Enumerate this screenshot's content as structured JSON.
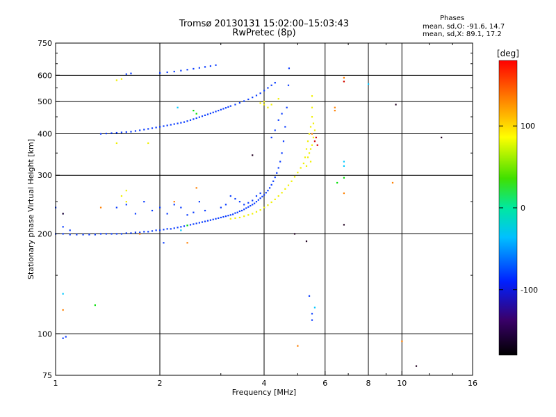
{
  "title": "Tromsø 20130131 15:02:00–15:03:43",
  "subtitle": "RwPretec (8p)",
  "stats": {
    "header": "Phases",
    "line_o": "mean, sd,O: -91.6, 14.7",
    "line_x": "mean, sd,X:  89.1, 17.2"
  },
  "colorbar": {
    "label": "[deg]",
    "range": [
      -180,
      180
    ],
    "ticks": [
      100,
      0,
      -100
    ],
    "tick_labels": [
      "100",
      "0",
      "-100"
    ]
  },
  "chart_data": {
    "type": "scatter",
    "xlabel": "Frequency [MHz]",
    "ylabel": "Stationary phase Virtual Height [km]",
    "xscale": "log",
    "yscale": "log",
    "xlim": [
      1,
      16
    ],
    "ylim": [
      75,
      750
    ],
    "xticks": [
      1,
      2,
      4,
      6,
      8,
      10,
      16
    ],
    "xtick_labels": [
      "1",
      "2",
      "4",
      "6",
      "8",
      "10",
      "16"
    ],
    "yticks": [
      75,
      100,
      200,
      300,
      400,
      500,
      600,
      750
    ],
    "ytick_labels": [
      "75",
      "100",
      "200",
      "300",
      "400",
      "500",
      "600",
      "750"
    ],
    "color_encoding": "phase [deg]",
    "series": [
      {
        "color": "#0a3cff",
        "points": [
          [
            1.0,
            200
          ],
          [
            1.05,
            200
          ],
          [
            1.1,
            199
          ],
          [
            1.15,
            199
          ],
          [
            1.2,
            199
          ],
          [
            1.25,
            199
          ],
          [
            1.3,
            199
          ],
          [
            1.35,
            200
          ],
          [
            1.4,
            200
          ],
          [
            1.45,
            200
          ],
          [
            1.5,
            200
          ],
          [
            1.55,
            200
          ],
          [
            1.6,
            201
          ],
          [
            1.65,
            201
          ],
          [
            1.7,
            202
          ],
          [
            1.75,
            202
          ],
          [
            1.8,
            203
          ],
          [
            1.85,
            203
          ],
          [
            1.9,
            204
          ],
          [
            1.95,
            205
          ],
          [
            2.0,
            205
          ],
          [
            2.05,
            206
          ],
          [
            2.1,
            207
          ],
          [
            2.15,
            207
          ],
          [
            2.2,
            208
          ],
          [
            2.25,
            209
          ],
          [
            2.3,
            210
          ],
          [
            2.35,
            211
          ],
          [
            2.4,
            212
          ],
          [
            2.45,
            213
          ],
          [
            2.5,
            214
          ],
          [
            2.55,
            215
          ],
          [
            2.6,
            216
          ],
          [
            2.65,
            217
          ],
          [
            2.7,
            218
          ],
          [
            2.75,
            219
          ],
          [
            2.8,
            220
          ],
          [
            2.85,
            221
          ],
          [
            2.9,
            222
          ],
          [
            2.95,
            223
          ],
          [
            3.0,
            224
          ],
          [
            3.05,
            225
          ],
          [
            3.1,
            226
          ],
          [
            3.15,
            227
          ],
          [
            3.2,
            228
          ],
          [
            3.25,
            229
          ],
          [
            3.3,
            231
          ],
          [
            3.35,
            232
          ],
          [
            3.4,
            234
          ],
          [
            3.45,
            235
          ],
          [
            3.5,
            237
          ],
          [
            3.55,
            239
          ],
          [
            3.6,
            241
          ],
          [
            3.65,
            243
          ],
          [
            3.7,
            245
          ],
          [
            3.75,
            247
          ],
          [
            3.8,
            250
          ],
          [
            3.85,
            253
          ],
          [
            3.9,
            256
          ],
          [
            3.95,
            259
          ],
          [
            4.0,
            262
          ],
          [
            4.05,
            266
          ],
          [
            4.1,
            270
          ],
          [
            4.15,
            275
          ],
          [
            4.2,
            281
          ],
          [
            4.25,
            288
          ],
          [
            4.3,
            296
          ],
          [
            4.35,
            305
          ],
          [
            4.4,
            316
          ],
          [
            4.45,
            330
          ],
          [
            4.5,
            350
          ],
          [
            4.55,
            380
          ],
          [
            4.6,
            420
          ],
          [
            4.65,
            480
          ],
          [
            4.7,
            560
          ],
          [
            4.72,
            630
          ],
          [
            1.35,
            400
          ],
          [
            1.4,
            401
          ],
          [
            1.45,
            402
          ],
          [
            1.5,
            403
          ],
          [
            1.55,
            404
          ],
          [
            1.6,
            405
          ],
          [
            1.65,
            406
          ],
          [
            1.7,
            408
          ],
          [
            1.75,
            410
          ],
          [
            1.8,
            412
          ],
          [
            1.85,
            414
          ],
          [
            1.9,
            416
          ],
          [
            1.95,
            418
          ],
          [
            2.0,
            420
          ],
          [
            2.05,
            422
          ],
          [
            2.1,
            424
          ],
          [
            2.15,
            426
          ],
          [
            2.2,
            428
          ],
          [
            2.25,
            430
          ],
          [
            2.3,
            432
          ],
          [
            2.35,
            434
          ],
          [
            2.4,
            437
          ],
          [
            2.45,
            440
          ],
          [
            2.5,
            443
          ],
          [
            2.55,
            446
          ],
          [
            2.6,
            449
          ],
          [
            2.65,
            452
          ],
          [
            2.7,
            455
          ],
          [
            2.75,
            458
          ],
          [
            2.8,
            461
          ],
          [
            2.85,
            464
          ],
          [
            2.9,
            467
          ],
          [
            2.95,
            470
          ],
          [
            3.0,
            473
          ],
          [
            3.05,
            476
          ],
          [
            3.1,
            479
          ],
          [
            3.15,
            482
          ],
          [
            3.2,
            485
          ],
          [
            3.3,
            490
          ],
          [
            3.4,
            496
          ],
          [
            3.5,
            502
          ],
          [
            3.6,
            508
          ],
          [
            3.7,
            515
          ],
          [
            3.8,
            522
          ],
          [
            3.9,
            530
          ],
          [
            4.0,
            540
          ],
          [
            4.1,
            550
          ],
          [
            4.2,
            560
          ],
          [
            4.3,
            570
          ],
          [
            1.6,
            605
          ],
          [
            1.65,
            608
          ],
          [
            2.0,
            610
          ],
          [
            2.1,
            613
          ],
          [
            2.2,
            616
          ],
          [
            2.3,
            620
          ],
          [
            2.4,
            624
          ],
          [
            2.5,
            628
          ],
          [
            2.6,
            632
          ],
          [
            2.7,
            636
          ],
          [
            2.8,
            640
          ],
          [
            2.9,
            644
          ],
          [
            1.5,
            240
          ],
          [
            1.6,
            245
          ],
          [
            1.7,
            230
          ],
          [
            1.8,
            250
          ],
          [
            1.9,
            235
          ],
          [
            2.0,
            240
          ],
          [
            2.1,
            230
          ],
          [
            2.2,
            245
          ],
          [
            2.3,
            240
          ],
          [
            2.4,
            228
          ],
          [
            2.5,
            232
          ],
          [
            2.6,
            250
          ],
          [
            2.7,
            235
          ],
          [
            3.0,
            240
          ],
          [
            3.1,
            245
          ],
          [
            3.2,
            260
          ],
          [
            3.3,
            255
          ],
          [
            3.4,
            250
          ],
          [
            3.5,
            245
          ],
          [
            3.6,
            248
          ],
          [
            3.7,
            252
          ],
          [
            3.8,
            260
          ],
          [
            3.9,
            265
          ],
          [
            4.0,
            240
          ],
          [
            4.2,
            390
          ],
          [
            4.3,
            410
          ],
          [
            4.4,
            440
          ],
          [
            4.5,
            460
          ],
          [
            1.0,
            240
          ],
          [
            1.05,
            230
          ],
          [
            1.05,
            210
          ],
          [
            1.1,
            205
          ],
          [
            1.05,
            97
          ],
          [
            1.07,
            98
          ],
          [
            2.05,
            188
          ],
          [
            5.5,
            110
          ],
          [
            5.5,
            115
          ],
          [
            5.4,
            130
          ]
        ]
      },
      {
        "color": "#f0f000",
        "points": [
          [
            3.2,
            222
          ],
          [
            3.3,
            223
          ],
          [
            3.4,
            224
          ],
          [
            3.5,
            226
          ],
          [
            3.6,
            228
          ],
          [
            3.7,
            230
          ],
          [
            3.8,
            233
          ],
          [
            3.9,
            236
          ],
          [
            4.0,
            240
          ],
          [
            4.1,
            244
          ],
          [
            4.2,
            249
          ],
          [
            4.3,
            254
          ],
          [
            4.4,
            260
          ],
          [
            4.5,
            266
          ],
          [
            4.6,
            273
          ],
          [
            4.7,
            280
          ],
          [
            4.8,
            288
          ],
          [
            4.9,
            297
          ],
          [
            5.0,
            306
          ],
          [
            5.1,
            316
          ],
          [
            5.2,
            326
          ],
          [
            5.25,
            340
          ],
          [
            5.3,
            360
          ],
          [
            5.35,
            380
          ],
          [
            5.4,
            400
          ],
          [
            5.45,
            420
          ],
          [
            5.5,
            450
          ],
          [
            5.5,
            480
          ],
          [
            5.5,
            520
          ],
          [
            5.3,
            320
          ],
          [
            5.35,
            340
          ],
          [
            5.4,
            350
          ],
          [
            5.45,
            360
          ],
          [
            5.5,
            370
          ],
          [
            5.55,
            390
          ],
          [
            5.6,
            410
          ],
          [
            5.45,
            330
          ],
          [
            5.55,
            430
          ],
          [
            1.5,
            580
          ],
          [
            1.55,
            585
          ],
          [
            1.5,
            375
          ],
          [
            1.6,
            270
          ],
          [
            1.55,
            260
          ],
          [
            1.6,
            250
          ],
          [
            1.85,
            375
          ],
          [
            3.9,
            495
          ],
          [
            4.0,
            490
          ],
          [
            4.0,
            500
          ],
          [
            4.1,
            480
          ],
          [
            4.2,
            490
          ],
          [
            4.4,
            510
          ]
        ]
      },
      {
        "color": "#ff8000",
        "points": [
          [
            1.05,
            118
          ],
          [
            1.35,
            240
          ],
          [
            1.75,
            200
          ],
          [
            2.2,
            250
          ],
          [
            2.4,
            188
          ],
          [
            2.55,
            275
          ],
          [
            5.5,
            400
          ],
          [
            6.4,
            480
          ],
          [
            6.4,
            470
          ],
          [
            6.8,
            590
          ],
          [
            6.8,
            575
          ],
          [
            6.8,
            265
          ],
          [
            9.4,
            285
          ],
          [
            10.0,
            95
          ],
          [
            5.0,
            92
          ]
        ]
      },
      {
        "color": "#00e000",
        "points": [
          [
            1.3,
            122
          ],
          [
            2.4,
            212
          ],
          [
            2.5,
            470
          ],
          [
            2.55,
            460
          ],
          [
            6.5,
            285
          ],
          [
            6.8,
            295
          ]
        ]
      },
      {
        "color": "#00c8ff",
        "points": [
          [
            1.05,
            132
          ],
          [
            2.3,
            205
          ],
          [
            2.25,
            480
          ],
          [
            6.8,
            330
          ],
          [
            6.8,
            320
          ],
          [
            8.0,
            565
          ],
          [
            5.6,
            120
          ]
        ]
      },
      {
        "color": "#d00000",
        "points": [
          [
            5.6,
            380
          ],
          [
            5.65,
            390
          ],
          [
            5.7,
            370
          ],
          [
            6.8,
            575
          ]
        ]
      },
      {
        "color": "#200020",
        "points": [
          [
            1.05,
            230
          ],
          [
            3.7,
            345
          ],
          [
            4.9,
            200
          ],
          [
            5.3,
            190
          ],
          [
            6.8,
            213
          ],
          [
            9.6,
            490
          ],
          [
            11.0,
            80
          ],
          [
            13.0,
            390
          ]
        ]
      }
    ]
  }
}
